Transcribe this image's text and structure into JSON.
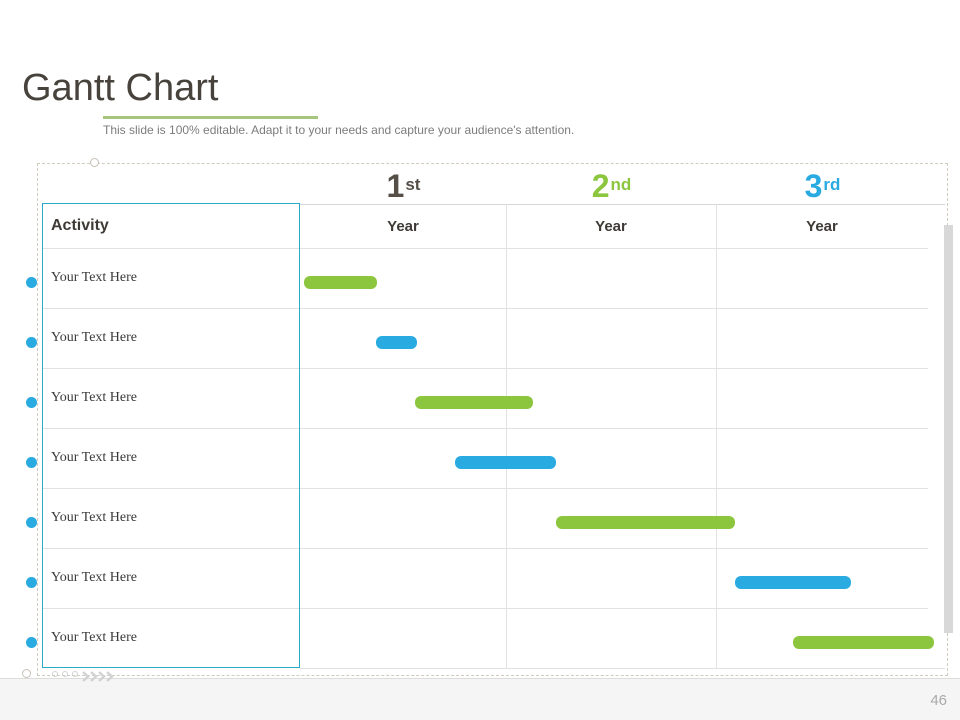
{
  "slide": {
    "title": "Gantt Chart",
    "subtitle": "This slide is 100% editable. Adapt it to your needs and capture your audience's attention.",
    "page_number": "46"
  },
  "table": {
    "activity_header": "Activity",
    "year_columns": [
      {
        "ordinal": "1",
        "suffix": "st",
        "year_label": "Year",
        "color": "#554f47"
      },
      {
        "ordinal": "2",
        "suffix": "nd",
        "year_label": "Year",
        "color": "#8cc63f"
      },
      {
        "ordinal": "3",
        "suffix": "rd",
        "year_label": "Year",
        "color": "#29abe2"
      }
    ]
  },
  "chart_data": {
    "type": "gantt",
    "title": "Gantt Chart",
    "timeline_columns": [
      "1st Year",
      "2nd Year",
      "3rd Year"
    ],
    "timeline_range_pct": [
      0,
      100
    ],
    "rows": [
      {
        "activity": "Your Text Here",
        "bar": {
          "color_name": "green",
          "color": "#8cc63f",
          "start_pct": 0.6,
          "width_pct": 11.6
        }
      },
      {
        "activity": "Your Text Here",
        "bar": {
          "color_name": "blue",
          "color": "#29abe2",
          "start_pct": 12.1,
          "width_pct": 6.5
        }
      },
      {
        "activity": "Your Text Here",
        "bar": {
          "color_name": "green",
          "color": "#8cc63f",
          "start_pct": 18.3,
          "width_pct": 18.8
        }
      },
      {
        "activity": "Your Text Here",
        "bar": {
          "color_name": "blue",
          "color": "#29abe2",
          "start_pct": 24.7,
          "width_pct": 16.1
        }
      },
      {
        "activity": "Your Text Here",
        "bar": {
          "color_name": "green",
          "color": "#8cc63f",
          "start_pct": 40.8,
          "width_pct": 28.5
        }
      },
      {
        "activity": "Your Text Here",
        "bar": {
          "color_name": "blue",
          "color": "#29abe2",
          "start_pct": 69.3,
          "width_pct": 18.5
        }
      },
      {
        "activity": "Your Text Here",
        "bar": {
          "color_name": "green",
          "color": "#8cc63f",
          "start_pct": 78.5,
          "width_pct": 22.5
        }
      }
    ]
  },
  "colors": {
    "bar_green": "#8cc63f",
    "bar_blue": "#29abe2",
    "accent_teal_border": "#2ba9c8",
    "title_text": "#47423c",
    "underline_green": "#a6c57d",
    "subtitle_gray": "#7c7c7c"
  }
}
